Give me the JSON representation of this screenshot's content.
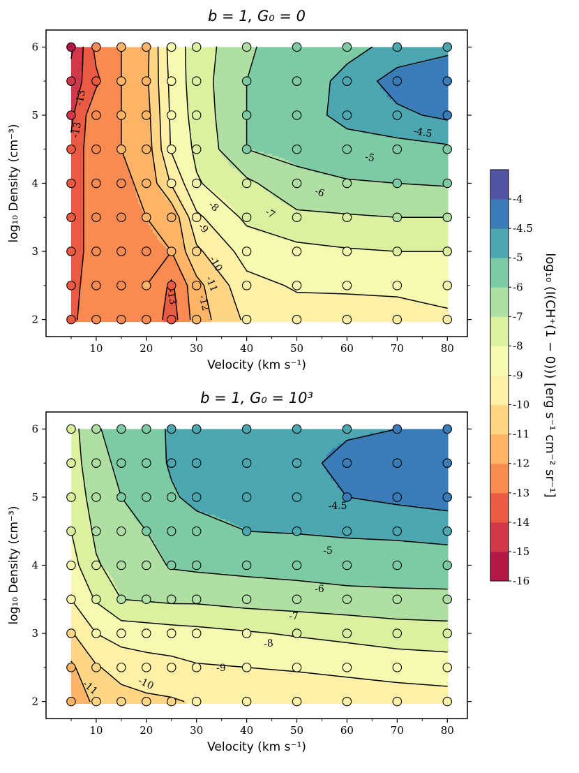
{
  "chart_data": [
    {
      "type": "contour",
      "title": "b = 1, G₀ = 0",
      "xlabel": "Velocity (km s⁻¹)",
      "ylabel": "log₁₀ Density (cm⁻³)",
      "xlim": [
        0,
        84
      ],
      "ylim": [
        1.75,
        6.25
      ],
      "xticks": [
        "10",
        "20",
        "30",
        "40",
        "50",
        "60",
        "70",
        "80"
      ],
      "yticks": [
        "2",
        "3",
        "4",
        "5",
        "6"
      ],
      "x": [
        5,
        10,
        15,
        20,
        25,
        30,
        40,
        50,
        60,
        70,
        80
      ],
      "y": [
        2,
        2.5,
        3,
        3.5,
        4,
        4.5,
        5,
        5.5,
        6
      ],
      "z": [
        [
          -13.2,
          -12.4,
          -12.2,
          -12.1,
          -13.5,
          -11.5,
          -9.8,
          -9.4,
          -9.3,
          -9.2,
          -9.1
        ],
        [
          -13.4,
          -12.3,
          -12.1,
          -12.0,
          -13.2,
          -11.3,
          -9.3,
          -8.9,
          -8.9,
          -8.9,
          -8.8
        ],
        [
          -13.6,
          -12.4,
          -12.2,
          -12.1,
          -12.0,
          -10.2,
          -8.6,
          -8.3,
          -8.1,
          -8.0,
          -8.0
        ],
        [
          -13.6,
          -12.4,
          -12.2,
          -12.0,
          -11.8,
          -9.2,
          -7.8,
          -7.2,
          -7.1,
          -7.0,
          -7.0
        ],
        [
          -13.6,
          -12.4,
          -12.2,
          -11.8,
          -9.9,
          -8.1,
          -7.2,
          -6.3,
          -6.1,
          -6.0,
          -5.9
        ],
        [
          -13.8,
          -12.2,
          -12.0,
          -11.6,
          -8.9,
          -7.8,
          -6.0,
          -5.7,
          -5.3,
          -5.2,
          -5.1
        ],
        [
          -14.2,
          -12.2,
          -12.0,
          -11.4,
          -8.8,
          -7.6,
          -6.0,
          -5.3,
          -4.8,
          -4.6,
          -4.4
        ],
        [
          -14.6,
          -13.2,
          -12.0,
          -11.2,
          -8.7,
          -7.5,
          -6.0,
          -5.4,
          -4.8,
          -4.3,
          -4.2
        ],
        [
          -15.2,
          -12.7,
          -12.0,
          -11.3,
          -8.5,
          -7.6,
          -6.1,
          -5.6,
          -5.2,
          -4.8,
          -4.6
        ]
      ],
      "contour_labels": [
        "-13",
        "-13",
        "-13",
        "-12",
        "-11",
        "-10",
        "-9",
        "-8",
        "-7",
        "-6",
        "-5",
        "-4.5"
      ]
    },
    {
      "type": "contour",
      "title": "b = 1, G₀ = 10³",
      "xlabel": "Velocity (km s⁻¹)",
      "ylabel": "log₁₀ Density (cm⁻³)",
      "xlim": [
        0,
        84
      ],
      "ylim": [
        1.75,
        6.25
      ],
      "xticks": [
        "10",
        "20",
        "30",
        "40",
        "50",
        "60",
        "70",
        "80"
      ],
      "yticks": [
        "2",
        "3",
        "4",
        "5",
        "6"
      ],
      "x": [
        5,
        10,
        15,
        20,
        25,
        30,
        40,
        50,
        60,
        70,
        80
      ],
      "y": [
        2,
        2.5,
        3,
        3.5,
        4,
        4.5,
        5,
        5.5,
        6
      ],
      "z": [
        [
          -11.6,
          -10.8,
          -10.4,
          -10.2,
          -10.1,
          -9.9,
          -9.8,
          -9.7,
          -9.5,
          -9.5,
          -9.4
        ],
        [
          -11.2,
          -10.1,
          -9.6,
          -9.4,
          -9.3,
          -9.1,
          -9.0,
          -8.9,
          -8.8,
          -8.6,
          -8.5
        ],
        [
          -10.1,
          -9.0,
          -8.6,
          -8.5,
          -8.4,
          -8.3,
          -8.1,
          -7.9,
          -7.7,
          -7.5,
          -7.4
        ],
        [
          -9.0,
          -7.9,
          -7.0,
          -6.9,
          -6.8,
          -6.8,
          -6.6,
          -6.5,
          -6.4,
          -6.3,
          -6.3
        ],
        [
          -8.4,
          -7.1,
          -6.6,
          -6.4,
          -5.9,
          -5.8,
          -5.7,
          -5.6,
          -5.4,
          -5.4,
          -5.3
        ],
        [
          -8.0,
          -6.8,
          -6.3,
          -6.0,
          -5.6,
          -5.3,
          -5.0,
          -4.95,
          -4.9,
          -4.85,
          -4.8
        ],
        [
          -7.6,
          -6.6,
          -6.0,
          -5.6,
          -5.1,
          -4.8,
          -4.7,
          -4.65,
          -4.5,
          -4.4,
          -4.3
        ],
        [
          -7.5,
          -6.3,
          -5.8,
          -5.4,
          -4.9,
          -4.8,
          -4.7,
          -4.6,
          -4.4,
          -4.3,
          -4.3
        ],
        [
          -7.4,
          -6.1,
          -5.6,
          -5.3,
          -4.9,
          -4.8,
          -4.7,
          -4.6,
          -4.55,
          -4.5,
          -4.5
        ]
      ],
      "contour_labels": [
        "-11",
        "-10",
        "-9",
        "-8",
        "-7",
        "-6",
        "-5",
        "-4.5"
      ]
    }
  ],
  "colorbar": {
    "label": "log₁₀ (I(CH⁺(1 − 0))) [erg s⁻¹ cm⁻² sr⁻¹]",
    "levels": [
      -16,
      -15,
      -14,
      -13,
      -12,
      -11,
      -10,
      -9,
      -8,
      -7,
      -6,
      -5,
      -4.5,
      -4
    ],
    "tick_labels": [
      "-16",
      "-15",
      "-14",
      "-13",
      "-12",
      "-11",
      "-10",
      "-9",
      "-8",
      "-7",
      "-6",
      "-5",
      "-4.5",
      "-4"
    ],
    "colors": [
      "#b41847",
      "#d1384a",
      "#eb5b44",
      "#f88b52",
      "#fdb467",
      "#fed685",
      "#fef0a7",
      "#f5fab0",
      "#dbf1a0",
      "#b0dfa3",
      "#7dcba5",
      "#4ca7b1",
      "#3a7cb8",
      "#5254a2"
    ]
  }
}
